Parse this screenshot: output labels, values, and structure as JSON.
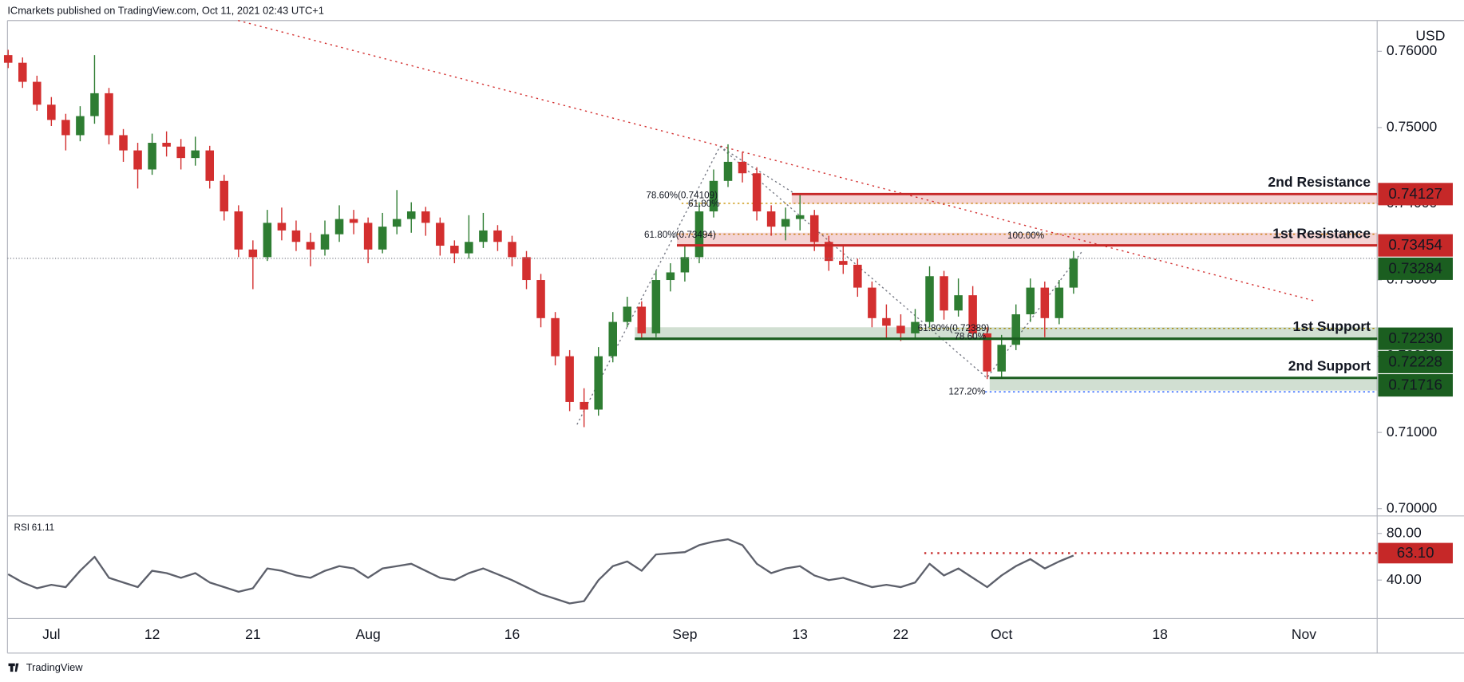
{
  "header": "ICmarkets published on TradingView.com, Oct 11, 2021 02:43 UTC+1",
  "footer": "TradingView",
  "chart_data": [
    {
      "type": "candlestick",
      "currency": "USD",
      "up_color": "#2e7d32",
      "down_color": "#d32f2f",
      "categories": [
        null,
        null,
        null,
        "Jul",
        null,
        null,
        null,
        null,
        null,
        null,
        "12",
        null,
        null,
        null,
        null,
        null,
        null,
        "21",
        null,
        null,
        null,
        null,
        null,
        null,
        null,
        "Aug",
        null,
        null,
        null,
        null,
        null,
        null,
        null,
        null,
        null,
        "16",
        null,
        null,
        null,
        null,
        null,
        null,
        null,
        null,
        null,
        null,
        null,
        "Sep",
        null,
        null,
        null,
        null,
        null,
        null,
        null,
        "13",
        null,
        null,
        null,
        null,
        null,
        null,
        "22",
        null,
        null,
        null,
        null,
        null,
        null,
        "Oct",
        null,
        null,
        null,
        null,
        null,
        null,
        null,
        null,
        null,
        null,
        "18",
        null,
        null,
        null,
        null,
        null,
        null,
        null,
        null,
        null,
        "Nov"
      ],
      "ohlc": [
        [
          0.7595,
          0.7602,
          0.7578,
          0.7585
        ],
        [
          0.7585,
          0.7592,
          0.7552,
          0.756
        ],
        [
          0.756,
          0.7568,
          0.7522,
          0.753
        ],
        [
          0.753,
          0.754,
          0.7502,
          0.751
        ],
        [
          0.751,
          0.7518,
          0.747,
          0.749
        ],
        [
          0.749,
          0.7528,
          0.7482,
          0.7515
        ],
        [
          0.7515,
          0.7595,
          0.7505,
          0.7545
        ],
        [
          0.7545,
          0.7552,
          0.7478,
          0.749
        ],
        [
          0.749,
          0.7498,
          0.7455,
          0.747
        ],
        [
          0.747,
          0.748,
          0.742,
          0.7445
        ],
        [
          0.7445,
          0.7492,
          0.7438,
          0.748
        ],
        [
          0.748,
          0.7495,
          0.7462,
          0.7475
        ],
        [
          0.7475,
          0.7485,
          0.7445,
          0.746
        ],
        [
          0.746,
          0.7488,
          0.745,
          0.747
        ],
        [
          0.747,
          0.7476,
          0.742,
          0.743
        ],
        [
          0.743,
          0.7438,
          0.7378,
          0.739
        ],
        [
          0.739,
          0.7398,
          0.733,
          0.734
        ],
        [
          0.734,
          0.7352,
          0.7288,
          0.733
        ],
        [
          0.733,
          0.7392,
          0.7325,
          0.7375
        ],
        [
          0.7375,
          0.7395,
          0.7352,
          0.7365
        ],
        [
          0.7365,
          0.7378,
          0.7338,
          0.735
        ],
        [
          0.735,
          0.7362,
          0.7318,
          0.734
        ],
        [
          0.734,
          0.7378,
          0.7332,
          0.736
        ],
        [
          0.736,
          0.7398,
          0.735,
          0.738
        ],
        [
          0.738,
          0.7392,
          0.736,
          0.7375
        ],
        [
          0.7375,
          0.7382,
          0.7322,
          0.734
        ],
        [
          0.734,
          0.7388,
          0.7335,
          0.737
        ],
        [
          0.737,
          0.7418,
          0.736,
          0.738
        ],
        [
          0.738,
          0.7402,
          0.7362,
          0.739
        ],
        [
          0.739,
          0.7396,
          0.7358,
          0.7375
        ],
        [
          0.7375,
          0.7382,
          0.7332,
          0.7345
        ],
        [
          0.7345,
          0.7352,
          0.7322,
          0.7335
        ],
        [
          0.7335,
          0.7385,
          0.7328,
          0.735
        ],
        [
          0.735,
          0.7388,
          0.7342,
          0.7365
        ],
        [
          0.7365,
          0.7372,
          0.7338,
          0.735
        ],
        [
          0.735,
          0.7358,
          0.7318,
          0.733
        ],
        [
          0.733,
          0.7338,
          0.7288,
          0.73
        ],
        [
          0.73,
          0.7308,
          0.7238,
          0.725
        ],
        [
          0.725,
          0.7258,
          0.7188,
          0.72
        ],
        [
          0.72,
          0.7208,
          0.7128,
          0.714
        ],
        [
          0.714,
          0.7158,
          0.7107,
          0.713
        ],
        [
          0.713,
          0.7212,
          0.7122,
          0.72
        ],
        [
          0.72,
          0.7258,
          0.7192,
          0.7245
        ],
        [
          0.7245,
          0.7278,
          0.7238,
          0.7265
        ],
        [
          0.7265,
          0.7272,
          0.7222,
          0.723
        ],
        [
          0.723,
          0.7312,
          0.7225,
          0.73
        ],
        [
          0.73,
          0.7322,
          0.7285,
          0.731
        ],
        [
          0.731,
          0.7345,
          0.7298,
          0.733
        ],
        [
          0.733,
          0.7402,
          0.7322,
          0.739
        ],
        [
          0.739,
          0.7445,
          0.7382,
          0.743
        ],
        [
          0.743,
          0.7478,
          0.7422,
          0.7455
        ],
        [
          0.7455,
          0.7468,
          0.7428,
          0.744
        ],
        [
          0.744,
          0.7448,
          0.7378,
          0.739
        ],
        [
          0.739,
          0.7398,
          0.7358,
          0.737
        ],
        [
          0.737,
          0.7395,
          0.7352,
          0.738
        ],
        [
          0.738,
          0.7412,
          0.7365,
          0.7385
        ],
        [
          0.7385,
          0.7392,
          0.7338,
          0.735
        ],
        [
          0.735,
          0.7358,
          0.7312,
          0.7325
        ],
        [
          0.7325,
          0.7345,
          0.7308,
          0.732
        ],
        [
          0.732,
          0.7328,
          0.7278,
          0.729
        ],
        [
          0.729,
          0.7298,
          0.7238,
          0.725
        ],
        [
          0.725,
          0.7268,
          0.7222,
          0.724
        ],
        [
          0.724,
          0.7255,
          0.722,
          0.723
        ],
        [
          0.723,
          0.7262,
          0.7222,
          0.7245
        ],
        [
          0.7245,
          0.7318,
          0.7238,
          0.7305
        ],
        [
          0.7305,
          0.7312,
          0.7248,
          0.726
        ],
        [
          0.726,
          0.7302,
          0.7252,
          0.728
        ],
        [
          0.728,
          0.7292,
          0.7222,
          0.723
        ],
        [
          0.723,
          0.7238,
          0.717,
          0.718
        ],
        [
          0.718,
          0.7228,
          0.7172,
          0.7215
        ],
        [
          0.7215,
          0.7268,
          0.7208,
          0.7255
        ],
        [
          0.7255,
          0.7302,
          0.7245,
          0.729
        ],
        [
          0.729,
          0.7298,
          0.7225,
          0.725
        ],
        [
          0.725,
          0.73,
          0.7242,
          0.729
        ],
        [
          0.729,
          0.7338,
          0.7282,
          0.7328
        ],
        null,
        null,
        null,
        null,
        null,
        null,
        null,
        null,
        null,
        null,
        null,
        null,
        null,
        null,
        null,
        null
      ],
      "ylim": [
        0.69905,
        0.76404
      ],
      "yticks": [
        {
          "value": 0.76,
          "label": "0.76000"
        },
        {
          "value": 0.75,
          "label": "0.75000"
        },
        {
          "value": 0.74,
          "label": "0.74000"
        },
        {
          "value": 0.73,
          "label": "0.73000"
        },
        {
          "value": 0.72,
          "label": "0.72000"
        },
        {
          "value": 0.71,
          "label": "0.71000"
        },
        {
          "value": 0.7,
          "label": "0.70000"
        }
      ],
      "levels": [
        {
          "name": "2nd Resistance",
          "value": 0.74127,
          "zone": 0.74,
          "color": "#c62828"
        },
        {
          "name": "1st Resistance",
          "value": 0.73454,
          "zone": 0.7362,
          "color": "#c62828"
        },
        {
          "value": 0.73284,
          "color": "#1b5e20",
          "line": "dotted"
        },
        {
          "name": "1st Support",
          "value": 0.7223,
          "label": "0.72230",
          "zone": 0.7238,
          "color": "#1b5e20"
        },
        {
          "value": 0.72228,
          "color": "#1b5e20"
        },
        {
          "name": "2nd Support",
          "value": 0.71716,
          "zone": 0.7155,
          "color": "#1b5e20"
        }
      ],
      "annotations": [
        {
          "text": "78.60%(0.74109)",
          "color": "#2962ff"
        },
        {
          "text": "61.80%",
          "color": "#c89100"
        },
        {
          "text": "61.80%(0.73494)",
          "color": "#c89100"
        },
        {
          "text": "100.00%",
          "color": "#2962ff"
        },
        {
          "text": "61.80%(0.72389)",
          "color": "#c89100"
        },
        {
          "text": "78.60%",
          "color": "#2962ff"
        },
        {
          "text": "127.20%",
          "color": "#2962ff"
        }
      ]
    },
    {
      "type": "line",
      "title": "RSI",
      "color": "#5d606b",
      "values": [
        45,
        38,
        33,
        36,
        34,
        48,
        60,
        42,
        38,
        34,
        48,
        46,
        42,
        46,
        38,
        34,
        30,
        33,
        50,
        48,
        44,
        42,
        48,
        52,
        50,
        42,
        50,
        52,
        54,
        48,
        42,
        40,
        46,
        50,
        45,
        40,
        34,
        28,
        24,
        20,
        22,
        40,
        52,
        56,
        48,
        62,
        63,
        64,
        70,
        73,
        75,
        70,
        54,
        46,
        50,
        52,
        44,
        40,
        42,
        38,
        34,
        36,
        34,
        38,
        54,
        44,
        50,
        42,
        34,
        44,
        52,
        58,
        50,
        56,
        61.11,
        null,
        null,
        null,
        null,
        null,
        null,
        null,
        null,
        null,
        null,
        null,
        null,
        null,
        null,
        null,
        null
      ],
      "ylim": [
        7,
        95
      ],
      "yticks": [
        {
          "value": 80,
          "label": "80.00"
        },
        {
          "value": 40,
          "label": "40.00"
        }
      ],
      "level": {
        "value": 63.1,
        "label": "63.10",
        "color": "#c62828"
      }
    }
  ]
}
